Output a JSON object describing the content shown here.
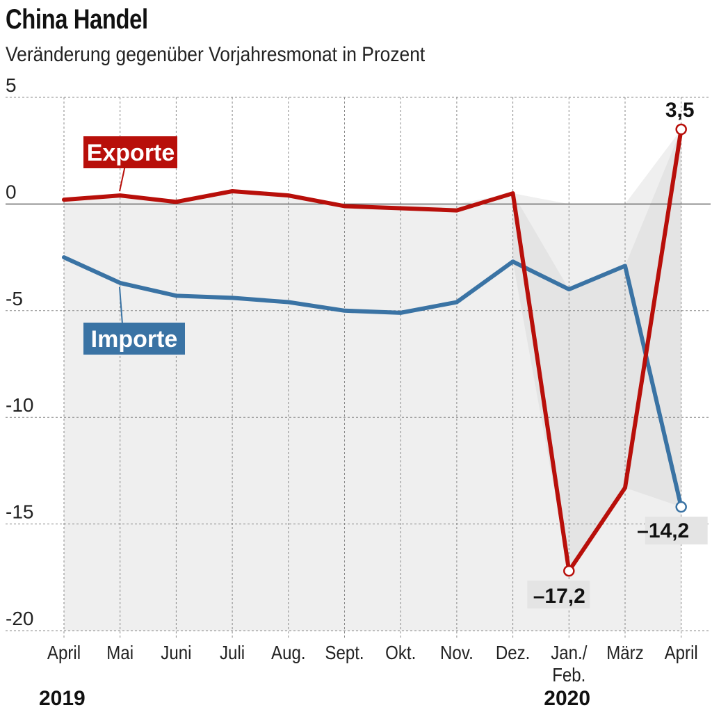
{
  "title": "China Handel",
  "subtitle": "Veränderung gegenüber Vorjahresmonat in Prozent",
  "colors": {
    "exporte": "#b80f0a",
    "importe": "#3a73a4",
    "fill": "#efefef",
    "grid": "#888888"
  },
  "chart_data": {
    "type": "line",
    "x": [
      "April",
      "Mai",
      "Juni",
      "Juli",
      "Aug.",
      "Sept.",
      "Okt.",
      "Nov.",
      "Dez.",
      "Jan./ Feb.",
      "März",
      "April"
    ],
    "year_labels": [
      {
        "label": "2019",
        "index": 0
      },
      {
        "label": "2020",
        "index": 9
      }
    ],
    "series": [
      {
        "name": "Exporte",
        "values": [
          0.2,
          0.4,
          0.1,
          0.6,
          0.4,
          -0.1,
          -0.2,
          -0.3,
          0.5,
          -17.2,
          -13.3,
          3.5
        ]
      },
      {
        "name": "Importe",
        "values": [
          -2.5,
          -3.7,
          -4.3,
          -4.4,
          -4.6,
          -5.0,
          -5.1,
          -4.6,
          -2.7,
          -4.0,
          -2.9,
          -14.2
        ]
      }
    ],
    "yticks": [
      5,
      0,
      -5,
      -10,
      -15,
      -20
    ],
    "ylim": [
      -20,
      5
    ],
    "grid": true,
    "labeled_points": [
      {
        "series": "Exporte",
        "index": 11,
        "text": "3,5"
      },
      {
        "series": "Exporte",
        "index": 9,
        "text": "–17,2"
      },
      {
        "series": "Importe",
        "index": 11,
        "text": "–14,2"
      }
    ]
  }
}
